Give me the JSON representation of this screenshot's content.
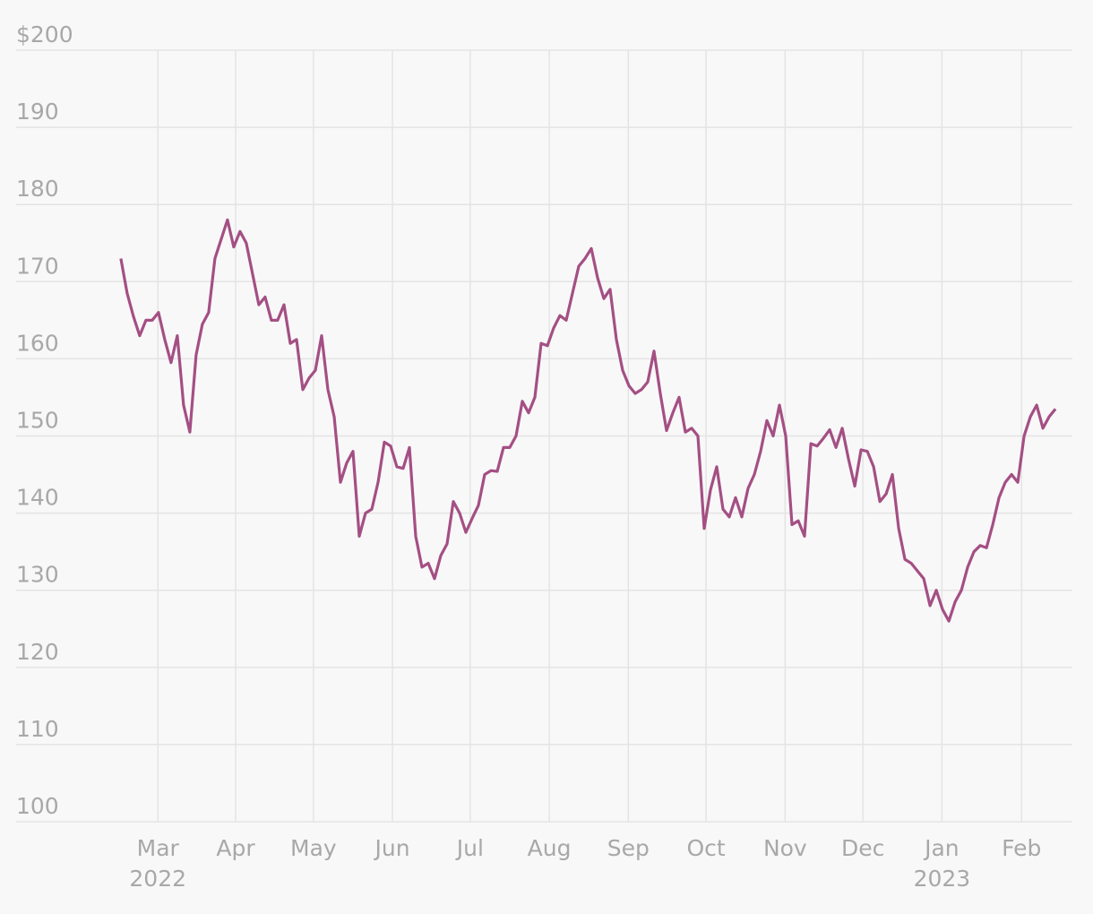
{
  "chart_data": {
    "type": "line",
    "series": [
      {
        "color": "#a44f84",
        "values": [
          173,
          168.5,
          165.5,
          163,
          165,
          165,
          166,
          162.5,
          159.5,
          163,
          154,
          150.5,
          160.5,
          164.5,
          166,
          173,
          175.5,
          178,
          174.5,
          176.5,
          175,
          171,
          167,
          168,
          165,
          165,
          167,
          162,
          162.5,
          156,
          157.5,
          158.5,
          163,
          156,
          152.5,
          144,
          146.5,
          148,
          137,
          140,
          140.5,
          144,
          149.2,
          148.7,
          146,
          145.8,
          148.5,
          137,
          133,
          133.5,
          131.5,
          134.5,
          136,
          141.5,
          140,
          137.5,
          139.3,
          141,
          145,
          145.5,
          145.4,
          148.5,
          148.5,
          150,
          154.5,
          153,
          155,
          162,
          161.7,
          164,
          165.6,
          165,
          168.5,
          172,
          173,
          174.3,
          170.5,
          167.8,
          169,
          162.5,
          158.5,
          156.5,
          155.5,
          156,
          157,
          161,
          155.5,
          150.7,
          153,
          155,
          150.5,
          151,
          150,
          138,
          143,
          146,
          140.5,
          139.5,
          142,
          139.5,
          143.2,
          145,
          148,
          152,
          150,
          154,
          150,
          138.5,
          139,
          137,
          149,
          148.7,
          149.7,
          150.8,
          148.5,
          151,
          147,
          143.5,
          148.2,
          148,
          146,
          141.5,
          142.5,
          145,
          138,
          134,
          133.5,
          132.5,
          131.5,
          128,
          130,
          127.5,
          126,
          128.5,
          130,
          133,
          135,
          135.8,
          135.5,
          138.5,
          142,
          144,
          145,
          144,
          150,
          152.5,
          154,
          151,
          152.5,
          153.5
        ]
      }
    ],
    "xlim": [
      -16.7,
      151.7
    ],
    "xticks": [
      {
        "value": 5.9,
        "label": "Mar",
        "sublabel": "2022"
      },
      {
        "value": 18.3,
        "label": "Apr"
      },
      {
        "value": 30.7,
        "label": "May"
      },
      {
        "value": 43.3,
        "label": "Jun"
      },
      {
        "value": 55.7,
        "label": "Jul"
      },
      {
        "value": 68.3,
        "label": "Aug"
      },
      {
        "value": 80.9,
        "label": "Sep"
      },
      {
        "value": 93.3,
        "label": "Oct"
      },
      {
        "value": 105.9,
        "label": "Nov"
      },
      {
        "value": 118.3,
        "label": "Dec"
      },
      {
        "value": 130.9,
        "label": "Jan",
        "sublabel": "2023"
      },
      {
        "value": 143.6,
        "label": "Feb"
      }
    ],
    "ylim": [
      100,
      200
    ],
    "yticks": [
      100,
      110,
      120,
      130,
      140,
      150,
      160,
      170,
      180,
      190,
      {
        "value": 200,
        "label": "$200"
      }
    ],
    "grid": true
  }
}
